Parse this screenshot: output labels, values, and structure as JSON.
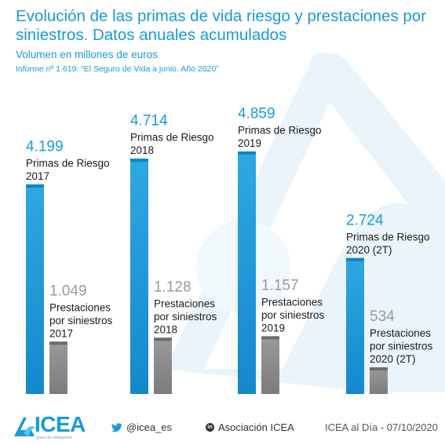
{
  "header": {
    "title": "Evolución de las primas de vida riesgo y prestaciones por siniestros. Datos anuales acumulados",
    "subtitle": "Volumen en millones de euros",
    "source": "Informe nº 1.619: “El Seguro de Vida a junio. Año 2020”"
  },
  "chart_data": {
    "type": "bar",
    "title": "Evolución de las primas de vida riesgo y prestaciones por siniestros. Datos anuales acumulados",
    "unit": "Volumen en millones de euros",
    "categories": [
      "2017",
      "2018",
      "2019",
      "2020 (2T)"
    ],
    "series": [
      {
        "name": "Primas de Riesgo",
        "color": "#1a9ad6",
        "values": [
          4199,
          4714,
          4859,
          2724
        ],
        "value_labels": [
          "4.199",
          "4.714",
          "4.859",
          "2.724"
        ],
        "bar_labels": [
          [
            "Primas de Riesgo",
            "2017"
          ],
          [
            "Primas de Riesgo",
            "2018"
          ],
          [
            "Primas de Riesgo",
            "2019"
          ],
          [
            "Primas de Riesgo",
            "2020 (2T)"
          ]
        ]
      },
      {
        "name": "Prestaciones por siniestros",
        "color": "#8a8a8a",
        "values": [
          1049,
          1128,
          1157,
          534
        ],
        "value_labels": [
          "1.049",
          "1.128",
          "1.157",
          "534"
        ],
        "bar_labels": [
          [
            "Prestaciones",
            "por siniestros",
            "2017"
          ],
          [
            "Prestaciones",
            "por siniestros",
            "2018"
          ],
          [
            "Prestaciones",
            "por siniestros",
            "2019"
          ],
          [
            "Prestaciones",
            "por siniestros",
            "2020 (2T)"
          ]
        ]
      }
    ],
    "ylim": [
      0,
      5000
    ],
    "grid": false,
    "legend": "none"
  },
  "footer": {
    "logo_text": "ICEA",
    "logo_subtitle": "grupo de inteligencia",
    "twitter": "@icea_es",
    "linkedin_badge": "in",
    "linkedin": "Asociación ICEA",
    "date_text": "ICEA al Día - 07/10/2020"
  }
}
